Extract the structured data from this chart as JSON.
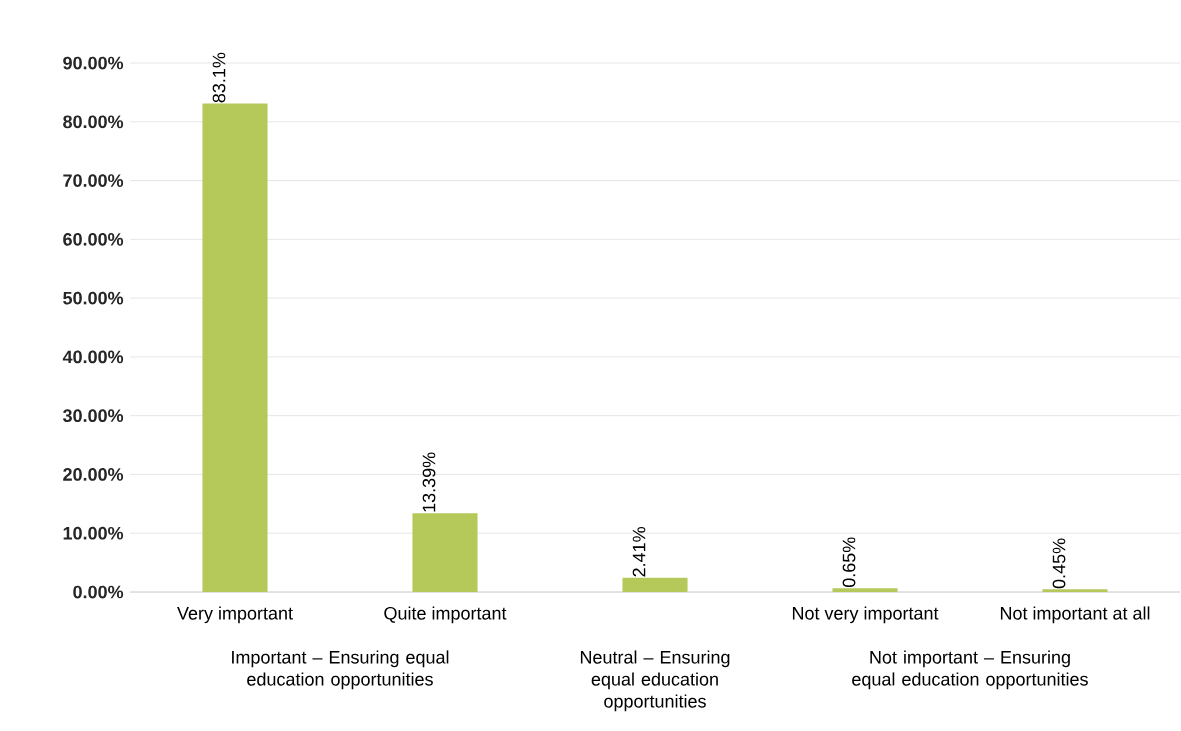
{
  "chart_data": {
    "type": "bar",
    "categories": [
      "Very important",
      "Quite important",
      null,
      "Not very important",
      "Not important at all"
    ],
    "values": [
      83.1,
      13.39,
      2.41,
      0.65,
      0.45
    ],
    "value_labels": [
      "83.1%",
      "13.39%",
      "2.41%",
      "0.65%",
      "0.45%"
    ],
    "color": "#b5c95a",
    "ylim": [
      0,
      90
    ],
    "yticks": [
      {
        "value": 0,
        "label": "0.00%"
      },
      {
        "value": 10,
        "label": "10.00%"
      },
      {
        "value": 20,
        "label": "20.00%"
      },
      {
        "value": 30,
        "label": "30.00%"
      },
      {
        "value": 40,
        "label": "40.00%"
      },
      {
        "value": 50,
        "label": "50.00%"
      },
      {
        "value": 60,
        "label": "60.00%"
      },
      {
        "value": 70,
        "label": "70.00%"
      },
      {
        "value": 80,
        "label": "80.00%"
      },
      {
        "value": 90,
        "label": "90.00%"
      }
    ],
    "grid": "y",
    "annotations": [
      "Important – Ensuring equal education opportunities",
      "Neutral – Ensuring equal education opportunities",
      "Not important – Ensuring equal education opportunities"
    ]
  }
}
